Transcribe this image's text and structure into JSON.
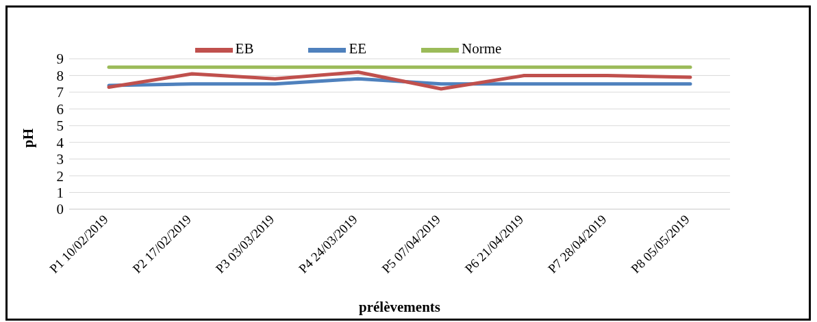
{
  "chart_data": {
    "type": "line",
    "xlabel": "prélèvements",
    "ylabel": "pH",
    "categories": [
      "P1 10/02/2019",
      "P2 17/02/2019",
      "P3 03/03/2019",
      "P4 24/03/2019",
      "P5 07/04/2019",
      "P6 21/04/2019",
      "P7 28/04/2019",
      "P8 05/05/2019"
    ],
    "series": [
      {
        "name": "EE",
        "color": "#4f81bd",
        "values": [
          7.4,
          7.5,
          7.5,
          7.8,
          7.5,
          7.5,
          7.5,
          7.5
        ]
      },
      {
        "name": "EB",
        "color": "#c0504d",
        "values": [
          7.3,
          8.1,
          7.8,
          8.2,
          7.2,
          8.0,
          8.0,
          7.9
        ]
      },
      {
        "name": "Norme",
        "color": "#9bbb59",
        "values": [
          8.5,
          8.5,
          8.5,
          8.5,
          8.5,
          8.5,
          8.5,
          8.5
        ]
      }
    ],
    "ylim": [
      0,
      9
    ],
    "yticks": [
      0,
      1,
      2,
      3,
      4,
      5,
      6,
      7,
      8,
      9
    ],
    "grid": "y",
    "legend": "top",
    "marker": "none",
    "line_style": "solid"
  }
}
